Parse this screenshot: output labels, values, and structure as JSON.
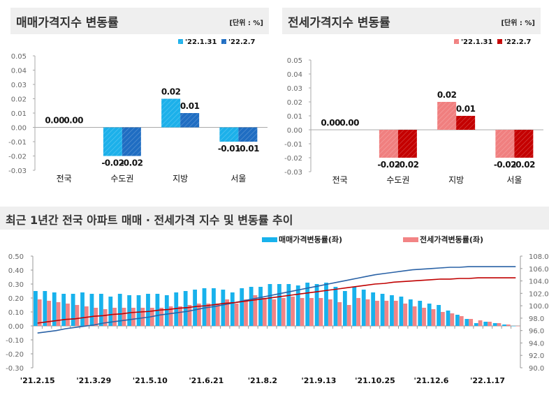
{
  "colors": {
    "sale_1": "#1cb0ea",
    "sale_2": "#1f6dc2",
    "jeonse_1": "#f07f7f",
    "jeonse_2": "#c40000",
    "sale_index": "#2a62a6",
    "jeonse_index": "#c00000",
    "bar_sale": "#18b2ec",
    "bar_jeonse": "#f28485"
  },
  "chart_data": [
    {
      "type": "bar",
      "title": "매매가격지수 변동률",
      "unit": "[단위 : %]",
      "categories": [
        "전국",
        "수도권",
        "지방",
        "서울"
      ],
      "series": [
        {
          "name": "'22.1.31",
          "values": [
            0.0,
            -0.02,
            0.02,
            -0.01
          ]
        },
        {
          "name": "'22.2.7",
          "values": [
            0.0,
            -0.02,
            0.01,
            -0.01
          ]
        }
      ],
      "ylim": [
        -0.03,
        0.05
      ],
      "yticks": [
        "0.05",
        "0.04",
        "0.03",
        "0.02",
        "0.01",
        "0.00",
        "-0.01",
        "-0.02",
        "-0.03"
      ],
      "legend": "top-right"
    },
    {
      "type": "bar",
      "title": "전세가격지수 변동률",
      "unit": "[단위 : %]",
      "categories": [
        "전국",
        "수도권",
        "지방",
        "서울"
      ],
      "series": [
        {
          "name": "'22.1.31",
          "values": [
            0.0,
            -0.02,
            0.02,
            -0.02
          ]
        },
        {
          "name": "'22.2.7",
          "values": [
            0.0,
            -0.02,
            0.01,
            -0.02
          ]
        }
      ],
      "ylim": [
        -0.03,
        0.05
      ],
      "yticks": [
        "0.05",
        "0.04",
        "0.03",
        "0.02",
        "0.01",
        "0.00",
        "-0.01",
        "-0.02",
        "-0.03"
      ],
      "legend": "top-right"
    },
    {
      "type": "bar+line",
      "title": "최근 1년간 전국 아파트 매매 · 전세가격 지수 및 변동률 추이",
      "xticks": [
        "'21.2.15",
        "'21.3.29",
        "'21.5.10",
        "'21.6.21",
        "'21.8.2",
        "'21.9.13",
        "'21.10.25",
        "'21.12.6",
        "'22.1.17"
      ],
      "ylim_left": [
        -0.3,
        0.5
      ],
      "yticks_left": [
        "0.50",
        "0.40",
        "0.30",
        "0.20",
        "0.10",
        "0.00",
        "-0.10",
        "-0.20",
        "-0.30"
      ],
      "ylim_right": [
        90.0,
        108.0
      ],
      "yticks_right": [
        "108.0",
        "106.0",
        "104.0",
        "102.0",
        "100.0",
        "98.0",
        "96.0",
        "94.0",
        "92.0",
        "90.0"
      ],
      "legend": "top-right",
      "series": [
        {
          "name": "매매가격변동률(좌)",
          "axis": "left",
          "type": "bar",
          "values": [
            0.25,
            0.25,
            0.24,
            0.23,
            0.23,
            0.24,
            0.23,
            0.23,
            0.21,
            0.23,
            0.22,
            0.22,
            0.23,
            0.23,
            0.22,
            0.24,
            0.25,
            0.26,
            0.27,
            0.27,
            0.26,
            0.24,
            0.27,
            0.28,
            0.28,
            0.3,
            0.3,
            0.3,
            0.29,
            0.31,
            0.3,
            0.31,
            0.28,
            0.25,
            0.28,
            0.26,
            0.24,
            0.23,
            0.22,
            0.21,
            0.19,
            0.18,
            0.16,
            0.15,
            0.11,
            0.08,
            0.05,
            0.02,
            0.03,
            0.02,
            0.01,
            0.0
          ]
        },
        {
          "name": "전세가격변동률(좌)",
          "axis": "left",
          "type": "bar",
          "values": [
            0.19,
            0.18,
            0.17,
            0.16,
            0.15,
            0.14,
            0.13,
            0.12,
            0.13,
            0.13,
            0.13,
            0.13,
            0.13,
            0.13,
            0.14,
            0.14,
            0.15,
            0.16,
            0.16,
            0.16,
            0.19,
            0.16,
            0.19,
            0.22,
            0.2,
            0.19,
            0.2,
            0.21,
            0.2,
            0.2,
            0.2,
            0.19,
            0.17,
            0.15,
            0.2,
            0.19,
            0.18,
            0.18,
            0.18,
            0.16,
            0.14,
            0.13,
            0.12,
            0.1,
            0.09,
            0.07,
            0.05,
            0.04,
            0.03,
            0.02,
            0.01,
            0.0
          ]
        },
        {
          "axis": "right",
          "type": "line",
          "color_key": "sale_index",
          "values": [
            95.6,
            95.8,
            96.0,
            96.3,
            96.5,
            96.7,
            96.9,
            97.2,
            97.4,
            97.6,
            97.8,
            98.0,
            98.2,
            98.5,
            98.7,
            98.9,
            99.1,
            99.4,
            99.7,
            99.9,
            100.2,
            100.5,
            100.8,
            101.1,
            101.4,
            101.7,
            102.0,
            102.3,
            102.6,
            102.9,
            103.2,
            103.5,
            103.8,
            104.1,
            104.4,
            104.7,
            105.0,
            105.2,
            105.4,
            105.6,
            105.8,
            105.9,
            106.0,
            106.1,
            106.2,
            106.2,
            106.3,
            106.3,
            106.3,
            106.3,
            106.3,
            106.3
          ]
        },
        {
          "axis": "right",
          "type": "line",
          "color_key": "jeonse_index",
          "values": [
            97.2,
            97.4,
            97.6,
            97.8,
            97.9,
            98.1,
            98.3,
            98.4,
            98.6,
            98.7,
            98.9,
            99.0,
            99.1,
            99.3,
            99.4,
            99.6,
            99.7,
            99.9,
            100.0,
            100.2,
            100.4,
            100.5,
            100.7,
            100.9,
            101.1,
            101.3,
            101.5,
            101.7,
            101.9,
            102.1,
            102.3,
            102.5,
            102.7,
            102.9,
            103.1,
            103.3,
            103.5,
            103.6,
            103.8,
            103.9,
            104.0,
            104.1,
            104.2,
            104.3,
            104.3,
            104.4,
            104.4,
            104.5,
            104.5,
            104.5,
            104.5,
            104.5
          ]
        }
      ]
    }
  ]
}
